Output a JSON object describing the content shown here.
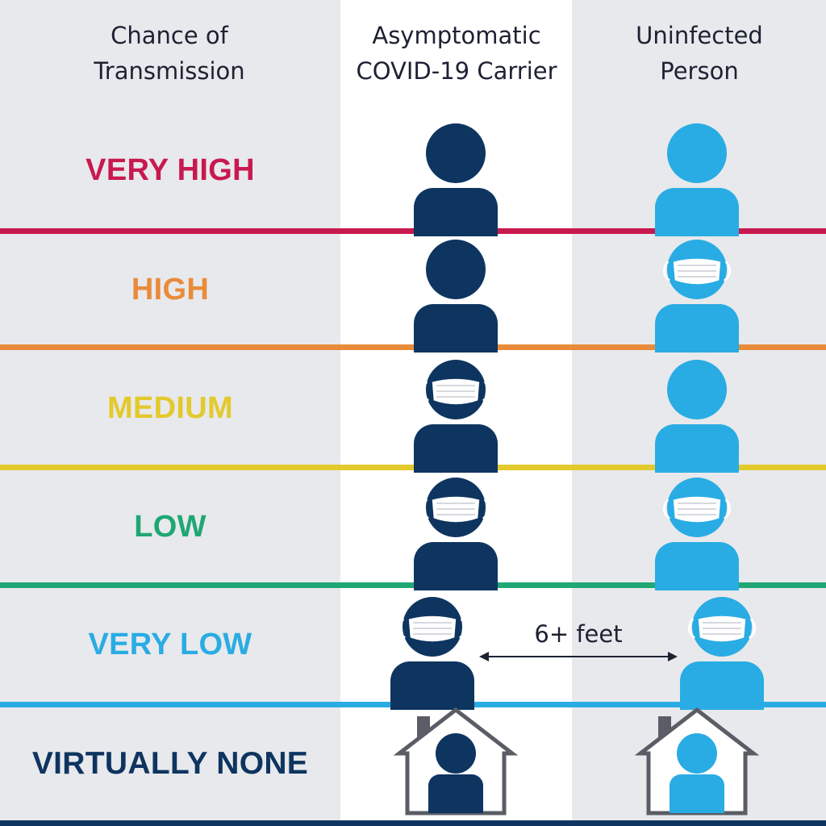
{
  "headers": {
    "left": "Chance of\nTransmission",
    "mid": "Asymptomatic\nCOVID-19 Carrier",
    "right": "Uninfected\nPerson"
  },
  "levels": [
    {
      "label": "VERY HIGH",
      "color": "#c8194f",
      "carrier_mask": false,
      "person_mask": false
    },
    {
      "label": "HIGH",
      "color": "#e98b3a",
      "carrier_mask": false,
      "person_mask": true
    },
    {
      "label": "MEDIUM",
      "color": "#e3c92c",
      "carrier_mask": true,
      "person_mask": false
    },
    {
      "label": "LOW",
      "color": "#1fa774",
      "carrier_mask": true,
      "person_mask": true
    },
    {
      "label": "VERY LOW",
      "color": "#29ace3",
      "carrier_mask": true,
      "person_mask": true,
      "distance": "6+ feet"
    },
    {
      "label": "VIRTUALLY NONE",
      "color": "#0e3560",
      "at_home": true
    }
  ],
  "colors": {
    "carrier": "#0e3560",
    "person": "#29ace3",
    "house_outline": "#5a5d66",
    "chimney": "#5a5d66"
  }
}
